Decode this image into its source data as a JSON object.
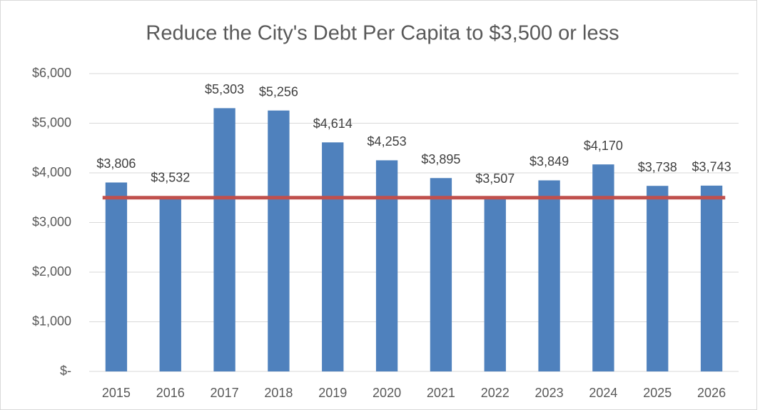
{
  "chart_data": {
    "type": "bar",
    "title": "Reduce the City's Debt Per Capita to $3,500 or less",
    "categories": [
      "2015",
      "2016",
      "2017",
      "2018",
      "2019",
      "2020",
      "2021",
      "2022",
      "2023",
      "2024",
      "2025",
      "2026"
    ],
    "values": [
      3806,
      3532,
      5303,
      5256,
      4614,
      4253,
      3895,
      3507,
      3849,
      4170,
      3738,
      3743
    ],
    "value_labels": [
      "$3,806",
      "$3,532",
      "$5,303",
      "$5,256",
      "$4,614",
      "$4,253",
      "$3,895",
      "$3,507",
      "$3,849",
      "$4,170",
      "$3,738",
      "$3,743"
    ],
    "color": "#4f81bd",
    "target_line": {
      "value": 3500,
      "color": "#c0504d"
    },
    "ylim": [
      0,
      6000
    ],
    "yticks": [
      {
        "value": 0,
        "label": "$-"
      },
      {
        "value": 1000,
        "label": "$1,000"
      },
      {
        "value": 2000,
        "label": "$2,000"
      },
      {
        "value": 3000,
        "label": "$3,000"
      },
      {
        "value": 4000,
        "label": "$4,000"
      },
      {
        "value": 5000,
        "label": "$5,000"
      },
      {
        "value": 6000,
        "label": "$6,000"
      }
    ],
    "grid": true
  }
}
